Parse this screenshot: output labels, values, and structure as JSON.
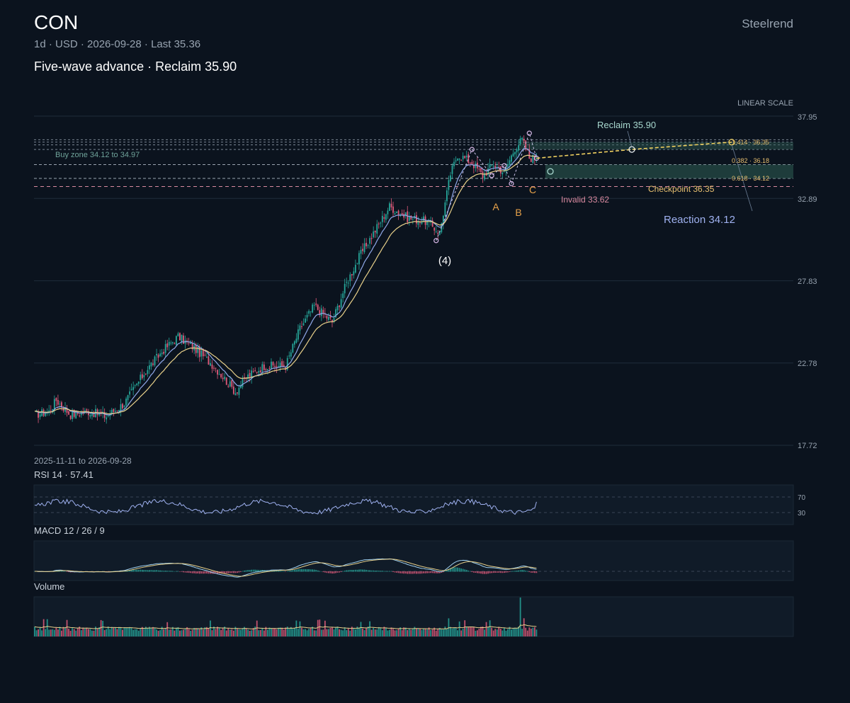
{
  "header": {
    "symbol": "CON",
    "meta": "1d · USD · 2026-09-28 · Last 35.36",
    "headline": "Five-wave advance · Reclaim 35.90",
    "brand": "Steelrend"
  },
  "colors": {
    "background": "#0b131e",
    "up": "#26a69a",
    "down": "#e05a7a",
    "ma_fast": "#8fa8e8",
    "ma_slow": "#e8d08a",
    "projection": "#f0d060",
    "zone": "#2f5e54"
  },
  "chart_data": [
    {
      "type": "candlestick",
      "title": "CON",
      "scale_label": "LINEAR SCALE",
      "date_range": "2025-11-11 to 2026-09-28",
      "y_ticks": [
        "37.95",
        "32.89",
        "27.83",
        "22.78",
        "17.72"
      ],
      "ylim": [
        17.72,
        37.95
      ],
      "last": 35.36,
      "close_path": [
        {
          "bar": 0,
          "close": 19.6
        },
        {
          "bar": 8,
          "close": 19.8
        },
        {
          "bar": 12,
          "close": 20.5
        },
        {
          "bar": 20,
          "close": 19.6
        },
        {
          "bar": 30,
          "close": 19.8
        },
        {
          "bar": 40,
          "close": 19.5
        },
        {
          "bar": 50,
          "close": 20.3
        },
        {
          "bar": 62,
          "close": 22.3
        },
        {
          "bar": 72,
          "close": 23.6
        },
        {
          "bar": 80,
          "close": 24.4
        },
        {
          "bar": 88,
          "close": 23.8
        },
        {
          "bar": 100,
          "close": 22.6
        },
        {
          "bar": 112,
          "close": 21.0
        },
        {
          "bar": 118,
          "close": 21.9
        },
        {
          "bar": 128,
          "close": 22.6
        },
        {
          "bar": 140,
          "close": 22.6
        },
        {
          "bar": 148,
          "close": 24.9
        },
        {
          "bar": 156,
          "close": 26.3
        },
        {
          "bar": 166,
          "close": 25.3
        },
        {
          "bar": 174,
          "close": 27.7
        },
        {
          "bar": 182,
          "close": 29.5
        },
        {
          "bar": 192,
          "close": 31.3
        },
        {
          "bar": 198,
          "close": 32.4
        },
        {
          "bar": 208,
          "close": 31.7
        },
        {
          "bar": 218,
          "close": 31.5
        },
        {
          "bar": 226,
          "close": 30.8
        },
        {
          "bar": 232,
          "close": 34.4
        },
        {
          "bar": 236,
          "close": 35.6
        },
        {
          "bar": 244,
          "close": 35.1
        },
        {
          "bar": 250,
          "close": 34.3
        },
        {
          "bar": 256,
          "close": 35.0
        },
        {
          "bar": 262,
          "close": 34.5
        },
        {
          "bar": 268,
          "close": 36.0
        },
        {
          "bar": 272,
          "close": 36.5
        },
        {
          "bar": 276,
          "close": 35.4
        },
        {
          "bar": 280,
          "close": 35.36
        }
      ],
      "annotations": {
        "buy_zone": {
          "label": "Buy zone 34.12 to 34.97",
          "low": 34.12,
          "high": 34.97
        },
        "reclaim": {
          "label": "Reclaim 35.90",
          "value": 35.9
        },
        "checkpoint": {
          "label": "Checkpoint 36.35",
          "value": 36.35
        },
        "invalid": {
          "label": "Invalid 33.62",
          "value": 33.62
        },
        "reaction": {
          "label": "Reaction 34.12",
          "value": 34.12
        },
        "fib_levels": [
          {
            "label": "1.414 · 36.35",
            "value": 36.35
          },
          {
            "label": "0.382 · 36.18",
            "value": 36.18
          },
          {
            "label": "0.618 · 34.12",
            "value": 34.12
          }
        ],
        "wave_labels": [
          "(4)",
          "A",
          "B",
          "C"
        ]
      }
    },
    {
      "type": "line",
      "title": "RSI 14 · 57.41",
      "levels": [
        "70",
        "30"
      ],
      "last": 57.41
    },
    {
      "type": "bar",
      "title": "MACD 12 / 26 / 9"
    },
    {
      "type": "bar",
      "title": "Volume"
    }
  ]
}
